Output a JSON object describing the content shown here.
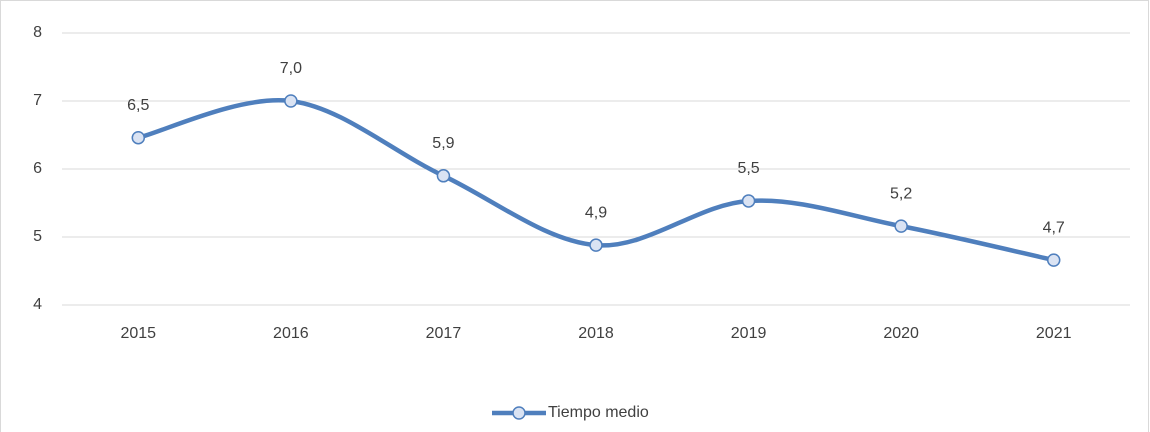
{
  "chart_data": {
    "type": "line",
    "categories": [
      "2015",
      "2016",
      "2017",
      "2018",
      "2019",
      "2020",
      "2021"
    ],
    "series": [
      {
        "name": "Tiempo medio",
        "color": "#4f7fbd",
        "values": [
          6.46,
          7.0,
          5.9,
          4.88,
          5.53,
          5.16,
          4.66
        ],
        "value_labels": [
          "6,5",
          "7,0",
          "5,9",
          "4,9",
          "5,5",
          "5,2",
          "4,7"
        ]
      }
    ],
    "ylim": [
      4,
      8
    ],
    "yticks": [
      4,
      5,
      6,
      7,
      8
    ],
    "grid": true,
    "smooth": true,
    "legend": "bottom"
  }
}
